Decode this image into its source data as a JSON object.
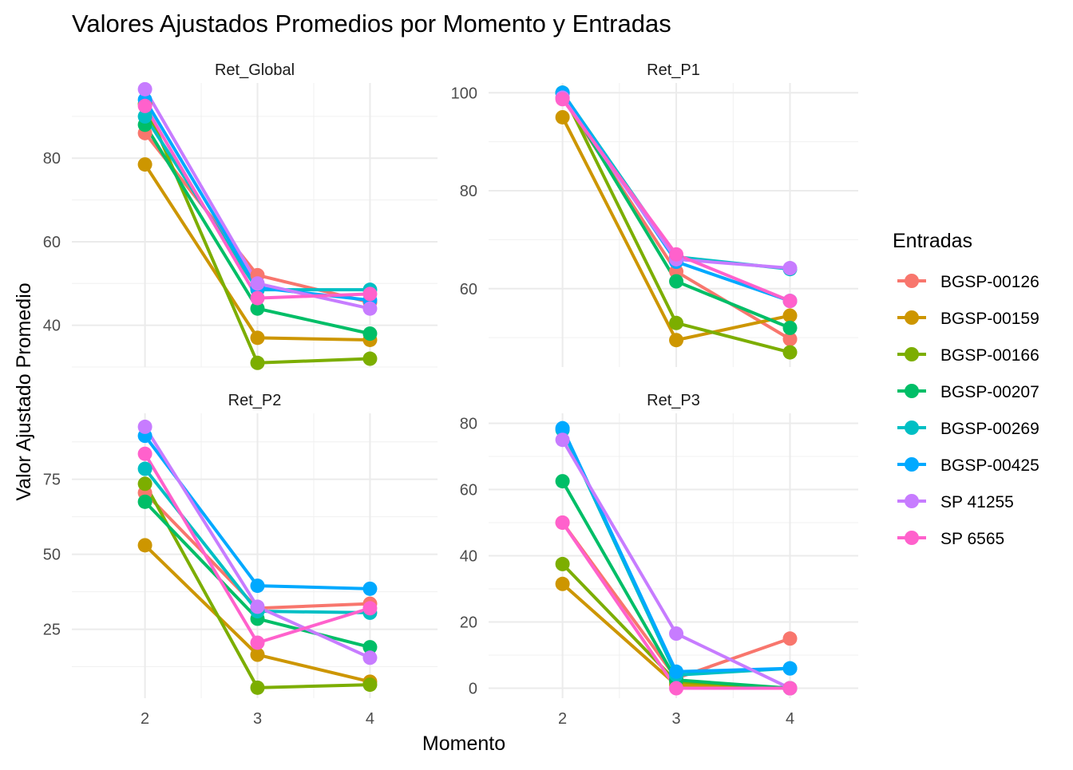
{
  "title": "Valores Ajustados Promedios por Momento y Entradas",
  "xlabel": "Momento",
  "ylabel": "Valor Ajustado Promedio",
  "legend": {
    "title": "Entradas",
    "placement": "right",
    "entries": [
      {
        "name": "BGSP-00126",
        "color": "#F8766D"
      },
      {
        "name": "BGSP-00159",
        "color": "#CD9600"
      },
      {
        "name": "BGSP-00166",
        "color": "#7CAE00"
      },
      {
        "name": "BGSP-00207",
        "color": "#00BE67"
      },
      {
        "name": "BGSP-00269",
        "color": "#00BFC4"
      },
      {
        "name": "BGSP-00425",
        "color": "#00A9FF"
      },
      {
        "name": "SP 41255",
        "color": "#C77CFF"
      },
      {
        "name": "SP 6565",
        "color": "#FF61CC"
      }
    ]
  },
  "chart_data": [
    {
      "type": "line",
      "title": "Ret_Global",
      "x": [
        2,
        3,
        4
      ],
      "xlim": [
        1.35,
        4.6
      ],
      "ylim": [
        30,
        98
      ],
      "yticks": [
        40,
        60,
        80
      ],
      "grid": true,
      "series": [
        {
          "name": "BGSP-00126",
          "values": [
            86,
            52,
            45.5
          ]
        },
        {
          "name": "BGSP-00159",
          "values": [
            78.5,
            37,
            36.5
          ]
        },
        {
          "name": "BGSP-00166",
          "values": [
            93,
            31,
            32
          ]
        },
        {
          "name": "BGSP-00207",
          "values": [
            88,
            44,
            38
          ]
        },
        {
          "name": "BGSP-00269",
          "values": [
            90,
            48.5,
            48.5
          ]
        },
        {
          "name": "BGSP-00425",
          "values": [
            94,
            49,
            46
          ]
        },
        {
          "name": "SP 41255",
          "values": [
            96.5,
            50,
            44
          ]
        },
        {
          "name": "SP 6565",
          "values": [
            92.5,
            46.5,
            47.5
          ]
        }
      ]
    },
    {
      "type": "line",
      "title": "Ret_P1",
      "x": [
        2,
        3,
        4
      ],
      "xlim": [
        1.35,
        4.6
      ],
      "ylim": [
        44,
        102
      ],
      "yticks": [
        60,
        80,
        100
      ],
      "grid": true,
      "series": [
        {
          "name": "BGSP-00126",
          "values": [
            99,
            63.5,
            49.7
          ]
        },
        {
          "name": "BGSP-00159",
          "values": [
            95,
            49.5,
            54.5
          ]
        },
        {
          "name": "BGSP-00166",
          "values": [
            100,
            53,
            47
          ]
        },
        {
          "name": "BGSP-00207",
          "values": [
            100,
            61.5,
            52
          ]
        },
        {
          "name": "BGSP-00269",
          "values": [
            100,
            66.5,
            64
          ]
        },
        {
          "name": "BGSP-00425",
          "values": [
            100,
            65.5,
            57.5
          ]
        },
        {
          "name": "SP 41255",
          "values": [
            99,
            66,
            64.2
          ]
        },
        {
          "name": "SP 6565",
          "values": [
            98.7,
            67,
            57.5
          ]
        }
      ]
    },
    {
      "type": "line",
      "title": "Ret_P2",
      "x": [
        2,
        3,
        4
      ],
      "xlim": [
        1.35,
        4.6
      ],
      "ylim": [
        2,
        97
      ],
      "yticks": [
        25,
        50,
        75
      ],
      "grid": true,
      "series": [
        {
          "name": "BGSP-00126",
          "values": [
            70.5,
            32,
            33.5
          ]
        },
        {
          "name": "BGSP-00159",
          "values": [
            53,
            16.5,
            7.5
          ]
        },
        {
          "name": "BGSP-00166",
          "values": [
            73.5,
            5.5,
            6.5
          ]
        },
        {
          "name": "BGSP-00207",
          "values": [
            67.5,
            28.5,
            19
          ]
        },
        {
          "name": "BGSP-00269",
          "values": [
            78.5,
            31,
            30.5
          ]
        },
        {
          "name": "BGSP-00425",
          "values": [
            89.5,
            39.5,
            38.5
          ]
        },
        {
          "name": "SP 41255",
          "values": [
            92.5,
            32.5,
            15.5
          ]
        },
        {
          "name": "SP 6565",
          "values": [
            83.5,
            20.5,
            32
          ]
        }
      ]
    },
    {
      "type": "line",
      "title": "Ret_P3",
      "x": [
        2,
        3,
        4
      ],
      "xlim": [
        1.35,
        4.6
      ],
      "ylim": [
        -3,
        83
      ],
      "yticks": [
        0,
        20,
        40,
        60,
        80
      ],
      "grid": true,
      "series": [
        {
          "name": "BGSP-00126",
          "values": [
            50,
            3,
            15
          ]
        },
        {
          "name": "BGSP-00159",
          "values": [
            31.5,
            1,
            0
          ]
        },
        {
          "name": "BGSP-00166",
          "values": [
            37.5,
            2,
            0
          ]
        },
        {
          "name": "BGSP-00207",
          "values": [
            62.5,
            2.5,
            0
          ]
        },
        {
          "name": "BGSP-00269",
          "values": [
            78,
            4,
            6
          ]
        },
        {
          "name": "BGSP-00425",
          "values": [
            78.5,
            5,
            6
          ]
        },
        {
          "name": "SP 41255",
          "values": [
            75,
            16.5,
            0
          ]
        },
        {
          "name": "SP 6565",
          "values": [
            50,
            0,
            0
          ]
        }
      ]
    }
  ]
}
